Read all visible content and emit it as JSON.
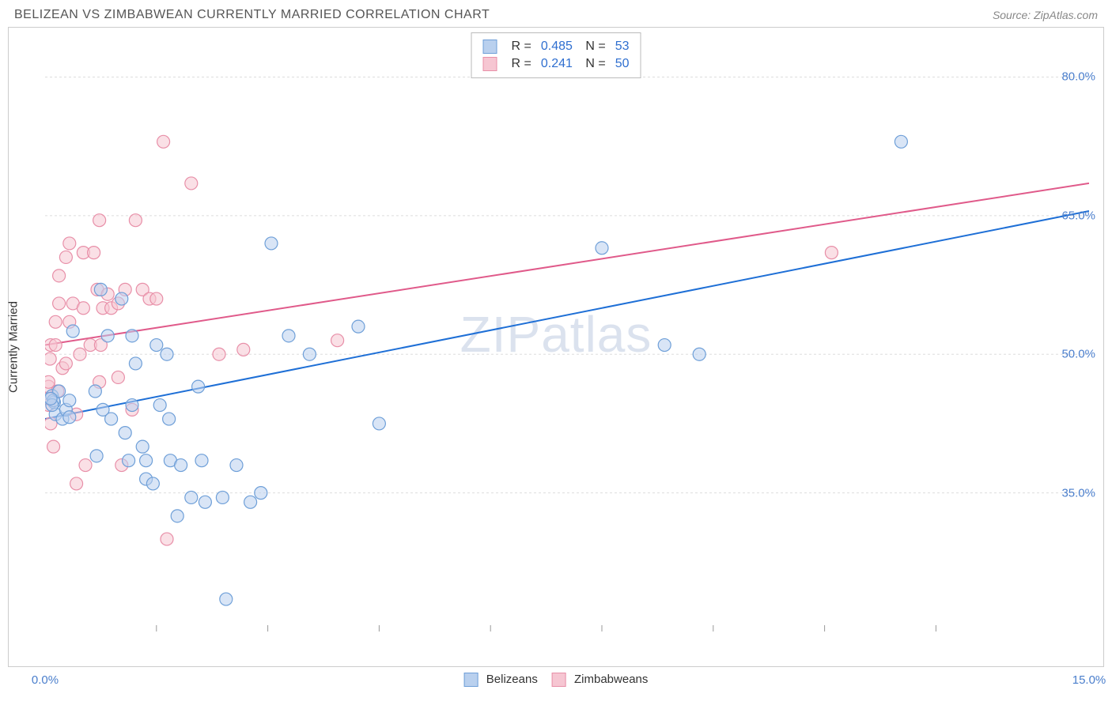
{
  "title": "BELIZEAN VS ZIMBABWEAN CURRENTLY MARRIED CORRELATION CHART",
  "source": "Source: ZipAtlas.com",
  "watermark": "ZIPatlas",
  "ylabel": "Currently Married",
  "chart": {
    "type": "scatter",
    "xlim": [
      0,
      15
    ],
    "ylim": [
      20,
      85
    ],
    "xticks": [
      {
        "val": 0.0,
        "label": "0.0%"
      },
      {
        "val": 15.0,
        "label": "15.0%"
      }
    ],
    "yticks": [
      {
        "val": 35.0,
        "label": "35.0%"
      },
      {
        "val": 50.0,
        "label": "50.0%"
      },
      {
        "val": 65.0,
        "label": "65.0%"
      },
      {
        "val": 80.0,
        "label": "80.0%"
      }
    ],
    "grid_positions_y": [
      35,
      50,
      65,
      80
    ],
    "grid_positions_x": [
      1.6,
      3.2,
      4.8,
      6.4,
      8.0,
      9.6,
      11.2,
      12.8
    ],
    "grid_color": "#dddddd",
    "background_color": "#ffffff",
    "marker_radius": 8,
    "marker_opacity": 0.55,
    "series": [
      {
        "name": "Belizeans",
        "color_fill": "#b9d0ee",
        "color_stroke": "#6e9fd8",
        "trend": {
          "x1": 0,
          "y1": 43.0,
          "x2": 15,
          "y2": 65.5,
          "color": "#1e6fd6",
          "width": 2
        },
        "R": "0.485",
        "N": "53",
        "points": [
          [
            0.1,
            45.5
          ],
          [
            0.13,
            44.8
          ],
          [
            0.12,
            45.0
          ],
          [
            0.15,
            43.5
          ],
          [
            0.1,
            44.5
          ],
          [
            0.2,
            46.0
          ],
          [
            0.08,
            45.2
          ],
          [
            0.25,
            43.0
          ],
          [
            0.3,
            44.0
          ],
          [
            0.35,
            45.0
          ],
          [
            0.35,
            43.2
          ],
          [
            0.4,
            52.5
          ],
          [
            0.72,
            46.0
          ],
          [
            0.74,
            39.0
          ],
          [
            0.8,
            57.0
          ],
          [
            0.9,
            52.0
          ],
          [
            0.83,
            44.0
          ],
          [
            0.95,
            43.0
          ],
          [
            1.1,
            56.0
          ],
          [
            1.15,
            41.5
          ],
          [
            1.25,
            52.0
          ],
          [
            1.25,
            44.5
          ],
          [
            1.2,
            38.5
          ],
          [
            1.3,
            49.0
          ],
          [
            1.4,
            40.0
          ],
          [
            1.45,
            38.5
          ],
          [
            1.45,
            36.5
          ],
          [
            1.55,
            36.0
          ],
          [
            1.6,
            51.0
          ],
          [
            1.65,
            44.5
          ],
          [
            1.75,
            50.0
          ],
          [
            1.78,
            43.0
          ],
          [
            1.8,
            38.5
          ],
          [
            1.9,
            32.5
          ],
          [
            1.95,
            38.0
          ],
          [
            2.1,
            34.5
          ],
          [
            2.25,
            38.5
          ],
          [
            2.3,
            34.0
          ],
          [
            2.2,
            46.5
          ],
          [
            2.55,
            34.5
          ],
          [
            2.6,
            23.5
          ],
          [
            2.75,
            38.0
          ],
          [
            2.95,
            34.0
          ],
          [
            3.1,
            35.0
          ],
          [
            3.25,
            62.0
          ],
          [
            3.5,
            52.0
          ],
          [
            3.8,
            50.0
          ],
          [
            4.5,
            53.0
          ],
          [
            4.8,
            42.5
          ],
          [
            8.0,
            61.5
          ],
          [
            8.9,
            51.0
          ],
          [
            9.4,
            50.0
          ],
          [
            12.3,
            73.0
          ]
        ]
      },
      {
        "name": "Zimbabweans",
        "color_fill": "#f6c6d2",
        "color_stroke": "#e88fa8",
        "trend": {
          "x1": 0,
          "y1": 51.0,
          "x2": 15,
          "y2": 68.5,
          "color": "#e05a8a",
          "width": 2
        },
        "R": "0.241",
        "N": "50",
        "points": [
          [
            0.05,
            46.5
          ],
          [
            0.05,
            44.5
          ],
          [
            0.07,
            49.5
          ],
          [
            0.05,
            47.0
          ],
          [
            0.08,
            51.0
          ],
          [
            0.05,
            45.2
          ],
          [
            0.12,
            40.0
          ],
          [
            0.08,
            42.5
          ],
          [
            0.15,
            51.0
          ],
          [
            0.15,
            53.5
          ],
          [
            0.18,
            46.0
          ],
          [
            0.2,
            55.5
          ],
          [
            0.2,
            58.5
          ],
          [
            0.25,
            48.5
          ],
          [
            0.3,
            60.5
          ],
          [
            0.3,
            49.0
          ],
          [
            0.35,
            53.5
          ],
          [
            0.4,
            55.5
          ],
          [
            0.35,
            62.0
          ],
          [
            0.45,
            43.5
          ],
          [
            0.45,
            36.0
          ],
          [
            0.5,
            50.0
          ],
          [
            0.55,
            55.0
          ],
          [
            0.55,
            61.0
          ],
          [
            0.58,
            38.0
          ],
          [
            0.65,
            51.0
          ],
          [
            0.7,
            61.0
          ],
          [
            0.75,
            57.0
          ],
          [
            0.78,
            64.5
          ],
          [
            0.78,
            47.0
          ],
          [
            0.83,
            55.0
          ],
          [
            0.8,
            51.0
          ],
          [
            0.9,
            56.5
          ],
          [
            0.95,
            55.0
          ],
          [
            1.05,
            55.5
          ],
          [
            1.05,
            47.5
          ],
          [
            1.15,
            57.0
          ],
          [
            1.1,
            38.0
          ],
          [
            1.25,
            44.0
          ],
          [
            1.3,
            64.5
          ],
          [
            1.4,
            57.0
          ],
          [
            1.5,
            56.0
          ],
          [
            1.6,
            56.0
          ],
          [
            1.7,
            73.0
          ],
          [
            1.75,
            30.0
          ],
          [
            2.1,
            68.5
          ],
          [
            2.5,
            50.0
          ],
          [
            2.85,
            50.5
          ],
          [
            4.2,
            51.5
          ],
          [
            11.3,
            61.0
          ]
        ]
      }
    ],
    "bottom_legend": [
      {
        "label": "Belizeans",
        "fill": "#b9d0ee",
        "stroke": "#6e9fd8"
      },
      {
        "label": "Zimbabweans",
        "fill": "#f6c6d2",
        "stroke": "#e88fa8"
      }
    ]
  }
}
